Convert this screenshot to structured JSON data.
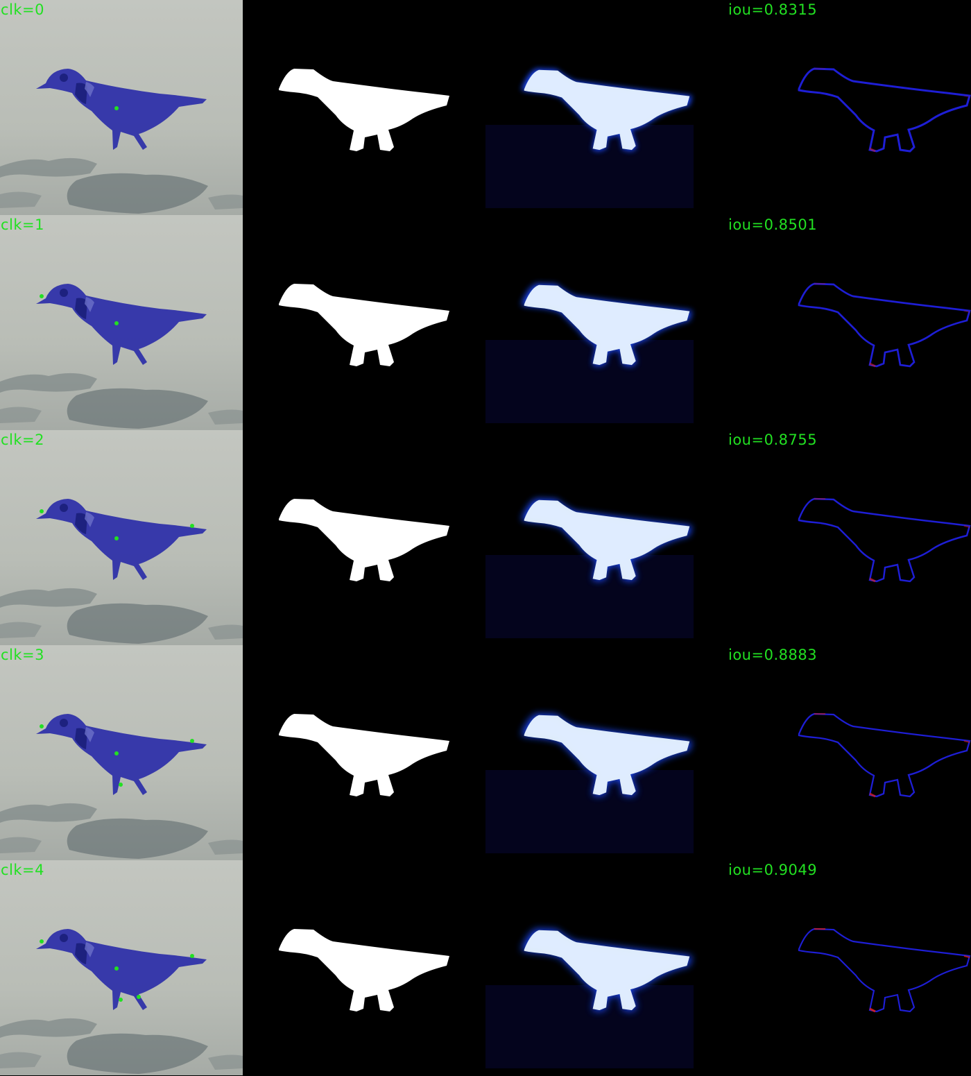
{
  "figure": {
    "panel_columns": [
      "image-with-clicks",
      "ground-truth-mask",
      "predicted-probability",
      "error-boundary"
    ],
    "rows": [
      {
        "clk_label": "clk=0",
        "iou_label": "iou=0.8315",
        "clicks": 1,
        "prob_intensity": 0.35,
        "error_red": 0.15
      },
      {
        "clk_label": "clk=1",
        "iou_label": "iou=0.8501",
        "clicks": 2,
        "prob_intensity": 0.55,
        "error_red": 0.25
      },
      {
        "clk_label": "clk=2",
        "iou_label": "iou=0.8755",
        "clicks": 3,
        "prob_intensity": 0.7,
        "error_red": 0.4
      },
      {
        "clk_label": "clk=3",
        "iou_label": "iou=0.8883",
        "clicks": 4,
        "prob_intensity": 0.8,
        "error_red": 0.55
      },
      {
        "clk_label": "clk=4",
        "iou_label": "iou=0.9049",
        "clicks": 5,
        "prob_intensity": 0.9,
        "error_red": 0.75
      }
    ]
  },
  "colors": {
    "label": "#22e022",
    "background_photo": "#b9bdb6",
    "overlay": "#2b2ea8",
    "click_dot": "#22e022",
    "mask": "#ffffff",
    "prob_edge": "#1d4bff",
    "error_blue": "#2020e0",
    "error_red": "#e02020"
  }
}
